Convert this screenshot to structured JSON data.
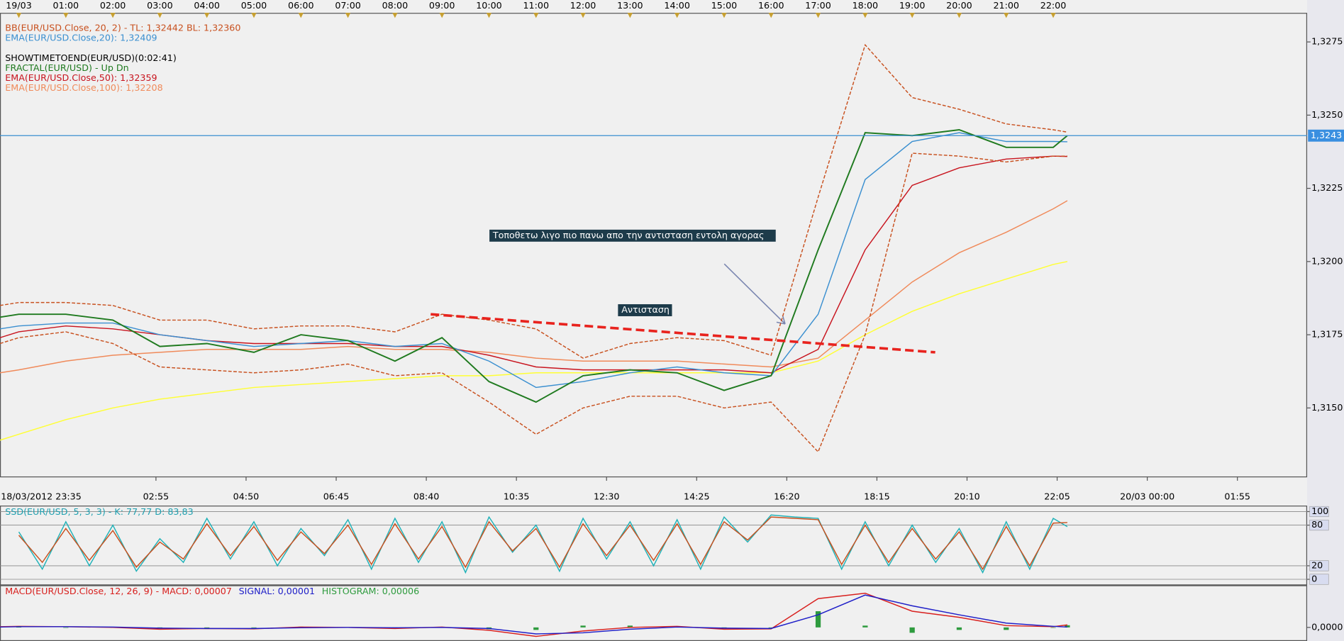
{
  "chart_data": [
    {
      "type": "line",
      "xlim": [
        -0.4,
        27.4
      ],
      "ylim": [
        1.31266,
        1.3282
      ],
      "top_xticks": [
        {
          "value": 0,
          "label": "19/03"
        },
        {
          "value": 1,
          "label": "01:00"
        },
        {
          "value": 2,
          "label": "02:00"
        },
        {
          "value": 3,
          "label": "03:00"
        },
        {
          "value": 4,
          "label": "04:00"
        },
        {
          "value": 5,
          "label": "05:00"
        },
        {
          "value": 6,
          "label": "06:00"
        },
        {
          "value": 7,
          "label": "07:00"
        },
        {
          "value": 8,
          "label": "08:00"
        },
        {
          "value": 9,
          "label": "09:00"
        },
        {
          "value": 10,
          "label": "10:00"
        },
        {
          "value": 11,
          "label": "11:00"
        },
        {
          "value": 12,
          "label": "12:00"
        },
        {
          "value": 13,
          "label": "13:00"
        },
        {
          "value": 14,
          "label": "14:00"
        },
        {
          "value": 15,
          "label": "15:00"
        },
        {
          "value": 16,
          "label": "16:00"
        },
        {
          "value": 17,
          "label": "17:00"
        },
        {
          "value": 18,
          "label": "18:00"
        },
        {
          "value": 19,
          "label": "19:00"
        },
        {
          "value": 20,
          "label": "20:00"
        },
        {
          "value": 21,
          "label": "21:00"
        },
        {
          "value": 22,
          "label": "22:00"
        }
      ],
      "xticks": [
        {
          "value": -0.4167,
          "label": "18/03/2012 23:35"
        },
        {
          "value": 2.9167,
          "label": "02:55"
        },
        {
          "value": 4.8333,
          "label": "04:50"
        },
        {
          "value": 6.75,
          "label": "06:45"
        },
        {
          "value": 8.6667,
          "label": "08:40"
        },
        {
          "value": 10.5833,
          "label": "10:35"
        },
        {
          "value": 12.5,
          "label": "12:30"
        },
        {
          "value": 14.4167,
          "label": "14:25"
        },
        {
          "value": 16.3333,
          "label": "16:20"
        },
        {
          "value": 18.25,
          "label": "18:15"
        },
        {
          "value": 20.1667,
          "label": "20:10"
        },
        {
          "value": 22.0833,
          "label": "22:05"
        },
        {
          "value": 24,
          "label": "20/03 00:00"
        },
        {
          "value": 25.9167,
          "label": "01:55"
        }
      ],
      "yticks": [
        {
          "value": 1.315,
          "label": "1,3150"
        },
        {
          "value": 1.3175,
          "label": "1,3175"
        },
        {
          "value": 1.32,
          "label": "1,3200"
        },
        {
          "value": 1.3225,
          "label": "1,3225"
        },
        {
          "value": 1.325,
          "label": "1,3250"
        },
        {
          "value": 1.3275,
          "label": "1,3275"
        }
      ],
      "last_price": {
        "value": 1.3243,
        "label": "1,3243"
      },
      "x": [
        -0.4,
        0,
        1,
        2,
        3,
        4,
        5,
        6,
        7,
        8,
        9,
        10,
        11,
        12,
        13,
        14,
        15,
        16,
        17,
        18,
        19,
        20,
        21,
        22,
        22.3
      ],
      "series": [
        {
          "color": "#ffff33",
          "values": [
            1.3139,
            1.3141,
            1.3146,
            1.315,
            1.3153,
            1.3155,
            1.3157,
            1.3158,
            1.3159,
            1.316,
            1.3161,
            1.3161,
            1.3162,
            1.3162,
            1.3162,
            1.3162,
            1.3162,
            1.3162,
            1.3166,
            1.3175,
            1.3183,
            1.3189,
            1.3194,
            1.3199,
            1.32
          ]
        },
        {
          "name": "EMA(EUR/USD.Close,100): 1,32208",
          "color": "#f08a5a",
          "values": [
            1.3162,
            1.3163,
            1.3166,
            1.3168,
            1.3169,
            1.317,
            1.317,
            1.317,
            1.3171,
            1.317,
            1.317,
            1.3169,
            1.3167,
            1.3166,
            1.3166,
            1.3166,
            1.3165,
            1.3164,
            1.3167,
            1.318,
            1.3193,
            1.3203,
            1.321,
            1.3218,
            1.32208
          ]
        },
        {
          "name": "EMA(EUR/USD.Close,50): 1,32359",
          "color": "#c8141e",
          "values": [
            1.3174,
            1.3176,
            1.3178,
            1.3177,
            1.3175,
            1.3173,
            1.3172,
            1.3172,
            1.3172,
            1.3171,
            1.3171,
            1.3168,
            1.3164,
            1.3163,
            1.3163,
            1.3163,
            1.3163,
            1.3162,
            1.317,
            1.3204,
            1.3226,
            1.3232,
            1.3235,
            1.3236,
            1.32359
          ]
        },
        {
          "name": "EMA(EUR/USD.Close,20): 1,32409",
          "color": "#3a8fd0",
          "values": [
            1.3177,
            1.3178,
            1.3179,
            1.3179,
            1.3175,
            1.3173,
            1.3171,
            1.3172,
            1.3173,
            1.3171,
            1.3172,
            1.3166,
            1.3157,
            1.3159,
            1.3162,
            1.3164,
            1.3162,
            1.3161,
            1.3182,
            1.3228,
            1.3241,
            1.3244,
            1.3241,
            1.3241,
            1.32409
          ]
        },
        {
          "name": "BB(EUR/USD.Close, 20, 2) -  TL: 1,32442  BL: 1,32360",
          "color": "#c8501e",
          "dashed": true,
          "values": [
            1.3185,
            1.3186,
            1.3186,
            1.3185,
            1.318,
            1.318,
            1.3177,
            1.3178,
            1.3178,
            1.3176,
            1.3182,
            1.318,
            1.3177,
            1.3167,
            1.3172,
            1.3174,
            1.3173,
            1.3168,
            1.3222,
            1.3274,
            1.3256,
            1.3252,
            1.3247,
            1.3245,
            1.32442
          ]
        },
        {
          "color": "#c8501e",
          "dashed": true,
          "values": [
            1.3172,
            1.3174,
            1.3176,
            1.3172,
            1.3164,
            1.3163,
            1.3162,
            1.3163,
            1.3165,
            1.3161,
            1.3162,
            1.3152,
            1.3141,
            1.315,
            1.3154,
            1.3154,
            1.315,
            1.3152,
            1.3135,
            1.3175,
            1.3237,
            1.3236,
            1.3234,
            1.3236,
            1.3236
          ]
        },
        {
          "color": "#1f7a1f",
          "width": 1.6,
          "values": [
            1.3181,
            1.3182,
            1.3182,
            1.318,
            1.3171,
            1.3172,
            1.3169,
            1.3175,
            1.3173,
            1.3166,
            1.3174,
            1.3159,
            1.3152,
            1.3161,
            1.3163,
            1.3162,
            1.3156,
            1.3161,
            1.3204,
            1.3244,
            1.3243,
            1.3245,
            1.3239,
            1.3239,
            1.3243
          ]
        },
        {
          "color": "#e8231e",
          "dashed": true,
          "width": 3,
          "x": [
            8.76,
            19.49
          ],
          "values": [
            1.3182,
            1.3169
          ]
        }
      ],
      "labels": [
        {
          "text": "SHOWTIMETOEND(EUR/USD)(0:02:41)",
          "color": "#000000"
        },
        {
          "text": "FRACTAL(EUR/USD) -  Up  Dn",
          "color": "#1f7a1f"
        }
      ],
      "annotations": [
        "Τοποθετω λιγο πιο πανω απο την αντισταση εντολη αγορας",
        "Αντισταση"
      ]
    },
    {
      "type": "line",
      "title": "SSD(EUR/USD, 5, 3, 3) -  K: 77,77  D: 83,83",
      "xlim": [
        -0.4,
        27.4
      ],
      "ylim": [
        -6.3,
        106.3
      ],
      "yticks": [
        0,
        20,
        80,
        100
      ],
      "x": [
        0,
        0.5,
        1,
        1.5,
        2,
        2.5,
        3,
        3.5,
        4,
        4.5,
        5,
        5.5,
        6,
        6.5,
        7,
        7.5,
        8,
        8.5,
        9,
        9.5,
        10,
        10.5,
        11,
        11.5,
        12,
        12.5,
        13,
        13.5,
        14,
        14.5,
        15,
        15.5,
        16,
        16.5,
        17,
        17.5,
        18,
        18.5,
        19,
        19.5,
        20,
        20.5,
        21,
        21.5,
        22,
        22.3
      ],
      "series": [
        {
          "color": "#20b2b8",
          "values": [
            70,
            15,
            85,
            20,
            80,
            12,
            60,
            25,
            90,
            30,
            85,
            20,
            75,
            35,
            88,
            15,
            90,
            25,
            85,
            10,
            92,
            40,
            80,
            12,
            90,
            30,
            85,
            20,
            88,
            15,
            92,
            55,
            95,
            92,
            90,
            15,
            85,
            20,
            80,
            25,
            75,
            10,
            85,
            15,
            90,
            77.77
          ]
        },
        {
          "color": "#c8501e",
          "values": [
            65,
            25,
            75,
            28,
            72,
            18,
            55,
            30,
            82,
            35,
            78,
            28,
            70,
            38,
            80,
            22,
            82,
            30,
            78,
            18,
            85,
            42,
            75,
            18,
            82,
            35,
            80,
            28,
            82,
            22,
            85,
            58,
            92,
            90,
            88,
            22,
            80,
            25,
            75,
            30,
            70,
            15,
            78,
            20,
            83,
            83.83
          ]
        }
      ]
    },
    {
      "type": "line",
      "xlim": [
        -0.4,
        27.4
      ],
      "ylim": [
        -0.00033,
        0.00117
      ],
      "yticks": [
        {
          "value": 0,
          "label": "0,0000"
        }
      ],
      "x": [
        -0.4,
        0,
        1,
        2,
        3,
        4,
        5,
        6,
        7,
        8,
        9,
        10,
        11,
        12,
        13,
        14,
        15,
        16,
        17,
        18,
        19,
        20,
        21,
        22,
        22.3
      ],
      "series": [
        {
          "name": "HISTOGRAM: 0,00006",
          "type": "bar",
          "color": "#2e9b3e",
          "values": [
            1e-05,
            1e-05,
            0,
            -1e-05,
            -3e-05,
            0,
            -1e-05,
            2e-05,
            0,
            -2e-05,
            1e-05,
            -5e-05,
            -7e-05,
            5e-05,
            5e-05,
            2e-05,
            -3e-05,
            -1e-05,
            0.00045,
            5e-05,
            -0.00015,
            -7e-05,
            -7e-05,
            -1e-05,
            6e-05
          ]
        },
        {
          "name": "MACD(EUR/USD.Close, 12, 26, 9) -  MACD: 0,00007",
          "color": "#d8201e",
          "values": [
            2e-05,
            3e-05,
            2e-05,
            0,
            -5e-05,
            -3e-05,
            -4e-05,
            1e-05,
            0,
            -3e-05,
            1e-05,
            -8e-05,
            -0.00025,
            -0.0001,
            0,
            3e-05,
            -5e-05,
            -4e-05,
            0.0008,
            0.00095,
            0.00045,
            0.00028,
            5e-05,
            2e-05,
            7e-05
          ]
        },
        {
          "name": "SIGNAL: 0,00001",
          "color": "#1e1ec8",
          "values": [
            1e-05,
            2e-05,
            2e-05,
            1e-05,
            -2e-05,
            -3e-05,
            -3e-05,
            -1e-05,
            0,
            -1e-05,
            0,
            -3e-05,
            -0.00018,
            -0.00015,
            -5e-05,
            1e-05,
            -2e-05,
            -3e-05,
            0.00035,
            0.0009,
            0.0006,
            0.00035,
            0.00012,
            3e-05,
            1e-05
          ]
        }
      ]
    }
  ]
}
